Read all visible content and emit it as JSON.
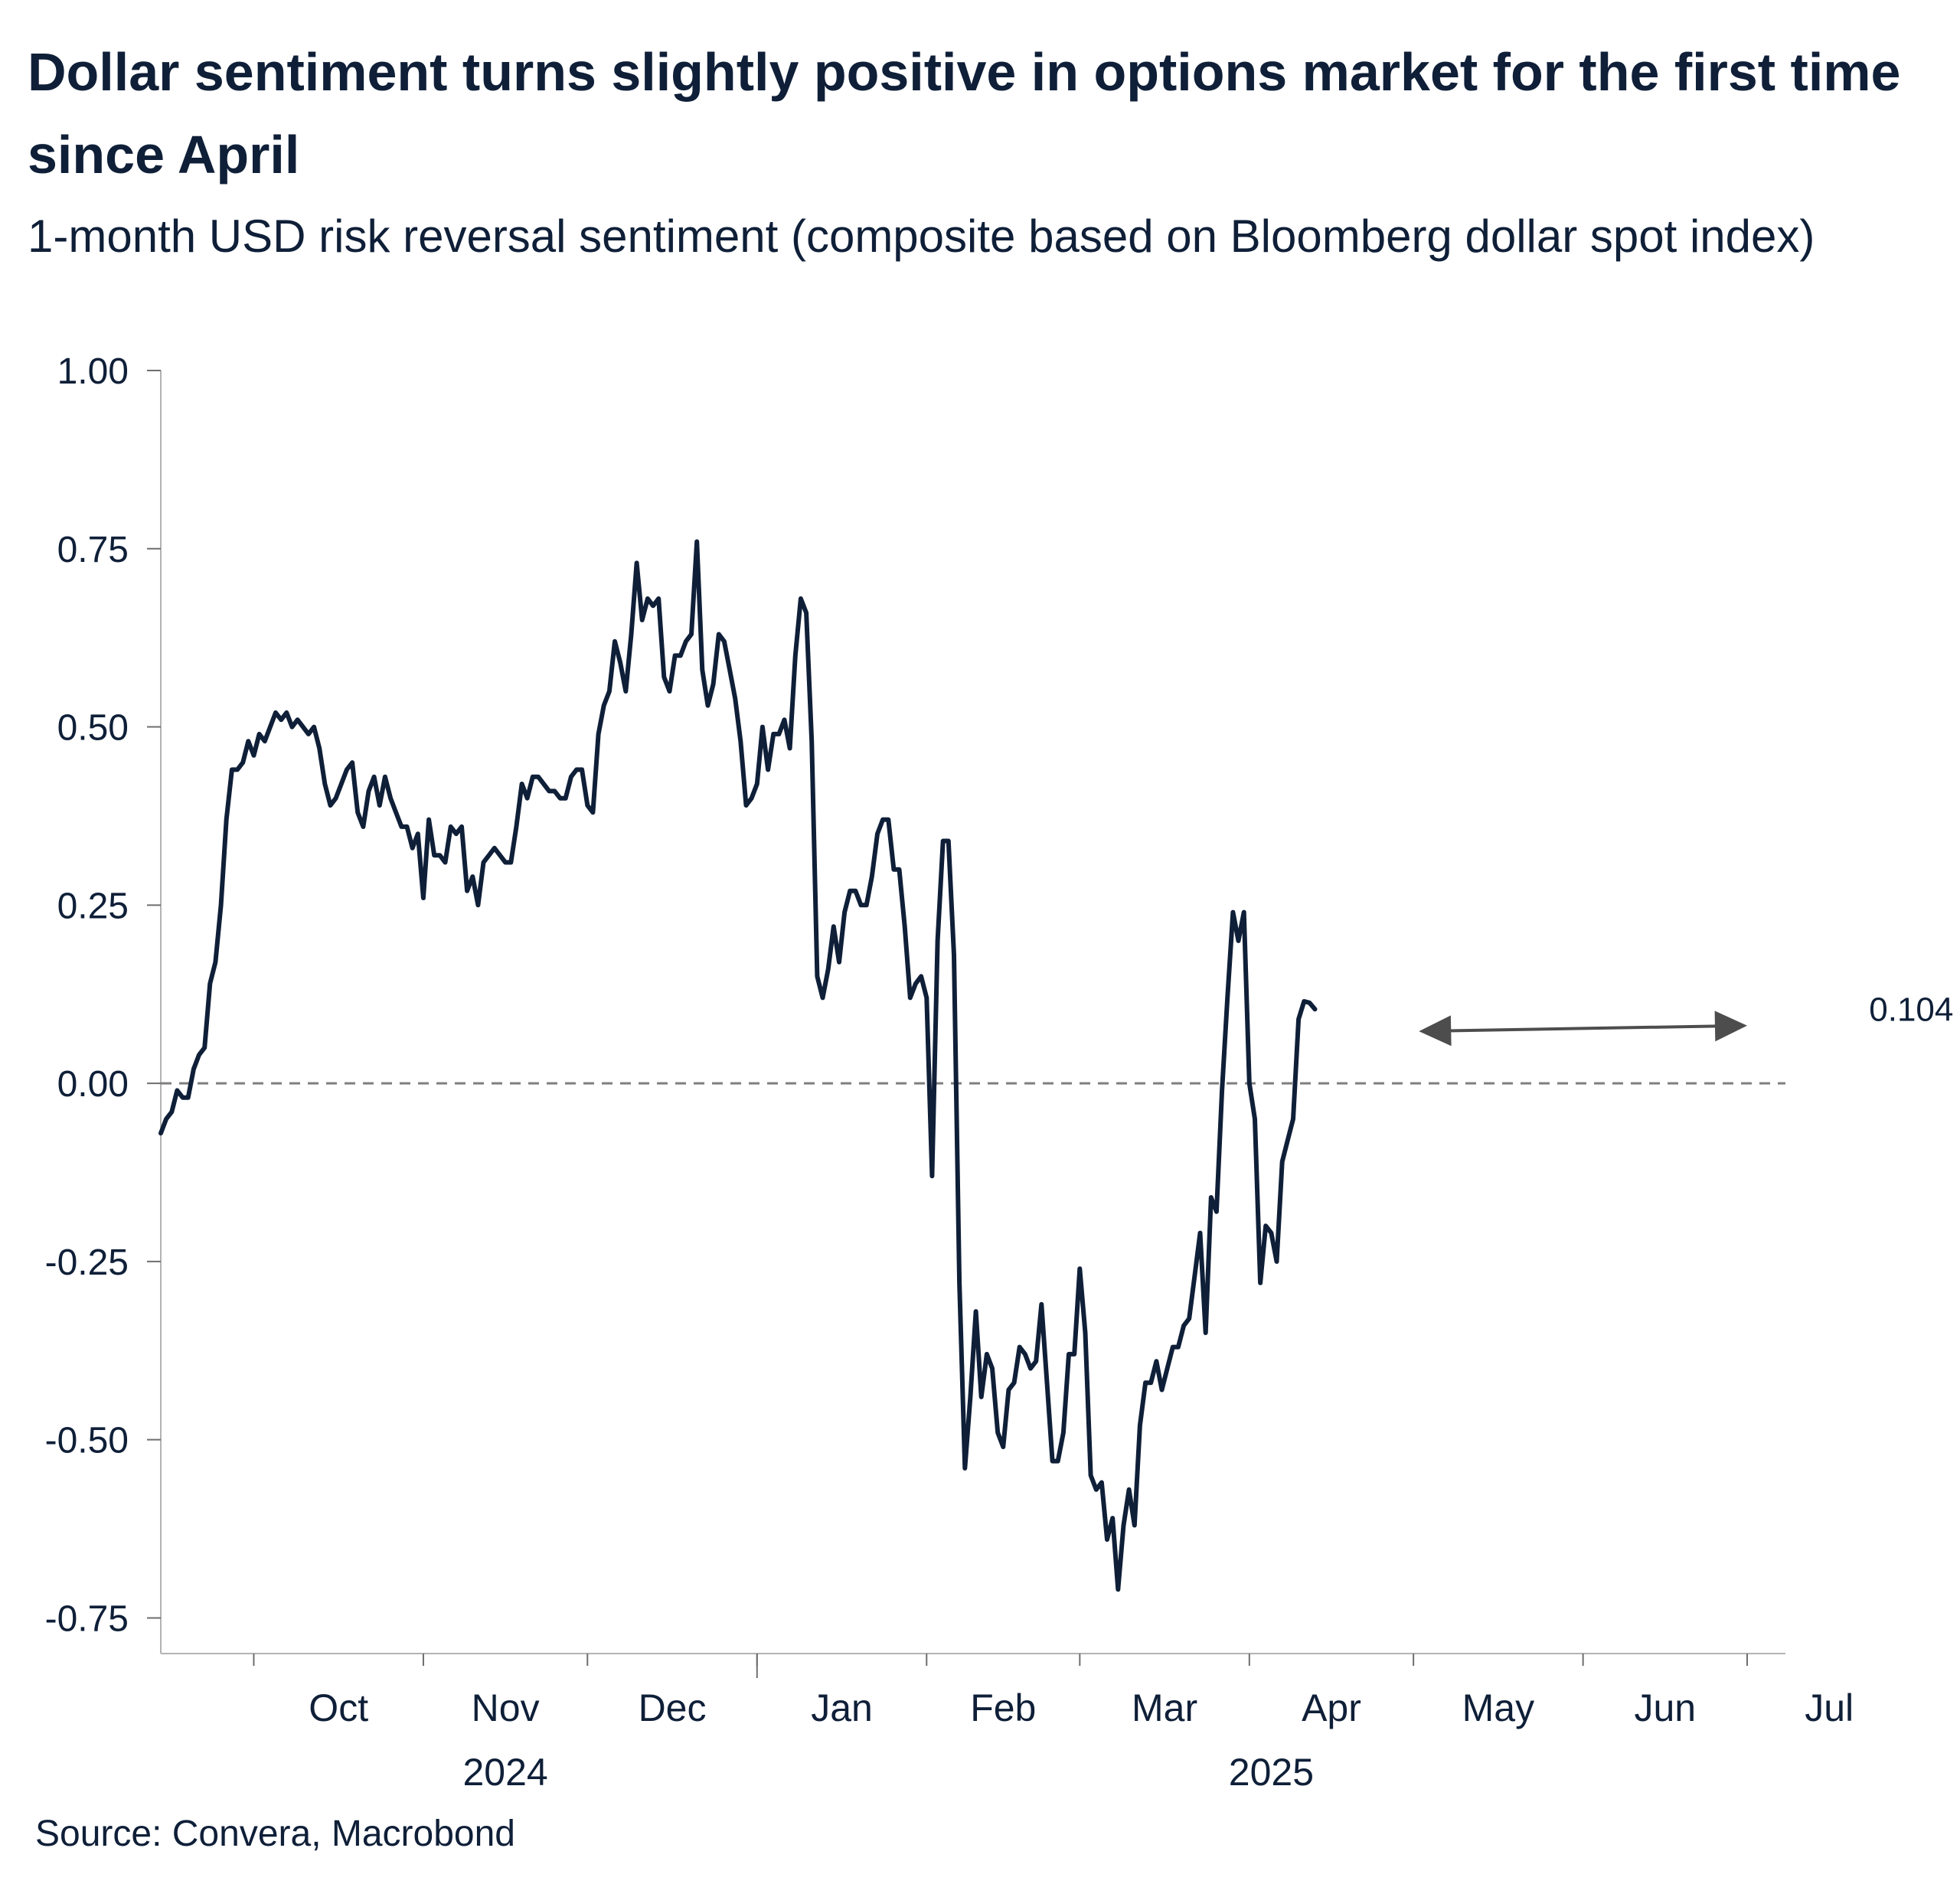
{
  "title": "Dollar sentiment turns slightly positive in options market for the first time since April",
  "subtitle": "1-month USD risk reversal sentiment (composite based on Bloomberg dollar spot index)",
  "source": "Source: Convera, Macrobond",
  "colors": {
    "line": "#0f1f38",
    "zero_line": "#7f7f7f",
    "axis": "#b3b3b3",
    "arrow": "#4d4d4d",
    "text": "#0f1f38"
  },
  "chart_data": {
    "type": "line",
    "title": "Dollar sentiment turns slightly positive in options market for the first time since April",
    "subtitle": "1-month USD risk reversal sentiment (composite based on Bloomberg dollar spot index)",
    "xlabel": "",
    "ylabel": "",
    "ylim": [
      -0.8,
      1.0
    ],
    "grid": false,
    "y_ticks": [
      1.0,
      0.75,
      0.5,
      0.25,
      0.0,
      -0.25,
      -0.5,
      -0.75
    ],
    "y_tick_labels": [
      "1.00",
      "0.75",
      "0.50",
      "0.25",
      "0.00",
      "-0.25",
      "-0.50",
      "-0.75"
    ],
    "x_unit": "days since 2024-09-01",
    "xlim": [
      13,
      310
    ],
    "x_month_ticks": [
      30,
      61,
      91,
      122,
      153,
      181,
      212,
      242,
      273,
      303
    ],
    "x_month_labels": [
      {
        "label": "Oct",
        "x": 45.5
      },
      {
        "label": "Nov",
        "x": 76
      },
      {
        "label": "Dec",
        "x": 106.5
      },
      {
        "label": "Jan",
        "x": 137.5
      },
      {
        "label": "Feb",
        "x": 167
      },
      {
        "label": "Mar",
        "x": 196.5
      },
      {
        "label": "Apr",
        "x": 227
      },
      {
        "label": "May",
        "x": 257.5
      },
      {
        "label": "Jun",
        "x": 288
      },
      {
        "label": "Jul",
        "x": 318
      }
    ],
    "year_separator_x": 122,
    "year_labels": [
      {
        "label": "2024",
        "x": 76
      },
      {
        "label": "2025",
        "x": 216
      }
    ],
    "reference_line": {
      "y": 0,
      "style": "dashed"
    },
    "annotation": {
      "label": "0.104",
      "value": 0.104,
      "arrow_from": {
        "x": 243,
        "y": 0.073
      },
      "arrow_to": {
        "x": 303,
        "y": 0.081
      },
      "label_anchor": {
        "x": 333,
        "y": 0.104
      }
    },
    "series": [
      {
        "name": "1-month USD risk reversal sentiment",
        "points": [
          [
            13,
            -0.07
          ],
          [
            14,
            -0.05
          ],
          [
            15,
            -0.04
          ],
          [
            16,
            -0.01
          ],
          [
            17,
            -0.02
          ],
          [
            18,
            -0.02
          ],
          [
            19,
            0.02
          ],
          [
            20,
            0.04
          ],
          [
            21,
            0.05
          ],
          [
            22,
            0.14
          ],
          [
            23,
            0.17
          ],
          [
            24,
            0.25
          ],
          [
            25,
            0.37
          ],
          [
            26,
            0.44
          ],
          [
            27,
            0.44
          ],
          [
            28,
            0.45
          ],
          [
            29,
            0.48
          ],
          [
            30,
            0.46
          ],
          [
            31,
            0.49
          ],
          [
            32,
            0.48
          ],
          [
            33,
            0.5
          ],
          [
            34,
            0.52
          ],
          [
            35,
            0.51
          ],
          [
            36,
            0.52
          ],
          [
            37,
            0.5
          ],
          [
            38,
            0.51
          ],
          [
            39,
            0.5
          ],
          [
            40,
            0.49
          ],
          [
            41,
            0.5
          ],
          [
            42,
            0.47
          ],
          [
            43,
            0.42
          ],
          [
            44,
            0.39
          ],
          [
            45,
            0.4
          ],
          [
            46,
            0.42
          ],
          [
            47,
            0.44
          ],
          [
            48,
            0.45
          ],
          [
            49,
            0.38
          ],
          [
            50,
            0.36
          ],
          [
            51,
            0.41
          ],
          [
            52,
            0.43
          ],
          [
            53,
            0.39
          ],
          [
            54,
            0.43
          ],
          [
            55,
            0.4
          ],
          [
            56,
            0.38
          ],
          [
            57,
            0.36
          ],
          [
            58,
            0.36
          ],
          [
            59,
            0.33
          ],
          [
            60,
            0.35
          ],
          [
            61,
            0.26
          ],
          [
            62,
            0.37
          ],
          [
            63,
            0.32
          ],
          [
            64,
            0.32
          ],
          [
            65,
            0.31
          ],
          [
            66,
            0.36
          ],
          [
            67,
            0.35
          ],
          [
            68,
            0.36
          ],
          [
            69,
            0.27
          ],
          [
            70,
            0.29
          ],
          [
            71,
            0.25
          ],
          [
            72,
            0.31
          ],
          [
            73,
            0.32
          ],
          [
            74,
            0.33
          ],
          [
            75,
            0.32
          ],
          [
            76,
            0.31
          ],
          [
            77,
            0.31
          ],
          [
            78,
            0.36
          ],
          [
            79,
            0.42
          ],
          [
            80,
            0.4
          ],
          [
            81,
            0.43
          ],
          [
            82,
            0.43
          ],
          [
            83,
            0.42
          ],
          [
            84,
            0.41
          ],
          [
            85,
            0.41
          ],
          [
            86,
            0.4
          ],
          [
            87,
            0.4
          ],
          [
            88,
            0.43
          ],
          [
            89,
            0.44
          ],
          [
            90,
            0.44
          ],
          [
            91,
            0.39
          ],
          [
            92,
            0.38
          ],
          [
            93,
            0.49
          ],
          [
            94,
            0.53
          ],
          [
            95,
            0.55
          ],
          [
            96,
            0.62
          ],
          [
            97,
            0.59
          ],
          [
            98,
            0.55
          ],
          [
            99,
            0.63
          ],
          [
            100,
            0.73
          ],
          [
            101,
            0.65
          ],
          [
            102,
            0.68
          ],
          [
            103,
            0.67
          ],
          [
            104,
            0.68
          ],
          [
            105,
            0.57
          ],
          [
            106,
            0.55
          ],
          [
            107,
            0.6
          ],
          [
            108,
            0.6
          ],
          [
            109,
            0.62
          ],
          [
            110,
            0.63
          ],
          [
            111,
            0.76
          ],
          [
            112,
            0.58
          ],
          [
            113,
            0.53
          ],
          [
            114,
            0.56
          ],
          [
            115,
            0.63
          ],
          [
            116,
            0.62
          ],
          [
            117,
            0.58
          ],
          [
            118,
            0.54
          ],
          [
            119,
            0.48
          ],
          [
            120,
            0.39
          ],
          [
            121,
            0.4
          ],
          [
            122,
            0.42
          ],
          [
            123,
            0.5
          ],
          [
            124,
            0.44
          ],
          [
            125,
            0.49
          ],
          [
            126,
            0.49
          ],
          [
            127,
            0.51
          ],
          [
            128,
            0.47
          ],
          [
            129,
            0.6
          ],
          [
            130,
            0.68
          ],
          [
            131,
            0.66
          ],
          [
            132,
            0.48
          ],
          [
            133,
            0.15
          ],
          [
            134,
            0.12
          ],
          [
            135,
            0.16
          ],
          [
            136,
            0.22
          ],
          [
            137,
            0.17
          ],
          [
            138,
            0.24
          ],
          [
            139,
            0.27
          ],
          [
            140,
            0.27
          ],
          [
            141,
            0.25
          ],
          [
            142,
            0.25
          ],
          [
            143,
            0.29
          ],
          [
            144,
            0.35
          ],
          [
            145,
            0.37
          ],
          [
            146,
            0.37
          ],
          [
            147,
            0.3
          ],
          [
            148,
            0.3
          ],
          [
            149,
            0.22
          ],
          [
            150,
            0.12
          ],
          [
            151,
            0.14
          ],
          [
            152,
            0.15
          ],
          [
            153,
            0.12
          ],
          [
            154,
            -0.13
          ],
          [
            155,
            0.2
          ],
          [
            156,
            0.34
          ],
          [
            157,
            0.34
          ],
          [
            158,
            0.18
          ],
          [
            159,
            -0.28
          ],
          [
            160,
            -0.54
          ],
          [
            161,
            -0.44
          ],
          [
            162,
            -0.32
          ],
          [
            163,
            -0.44
          ],
          [
            164,
            -0.38
          ],
          [
            165,
            -0.4
          ],
          [
            166,
            -0.49
          ],
          [
            167,
            -0.51
          ],
          [
            168,
            -0.43
          ],
          [
            169,
            -0.42
          ],
          [
            170,
            -0.37
          ],
          [
            171,
            -0.38
          ],
          [
            172,
            -0.4
          ],
          [
            173,
            -0.39
          ],
          [
            174,
            -0.31
          ],
          [
            175,
            -0.42
          ],
          [
            176,
            -0.53
          ],
          [
            177,
            -0.53
          ],
          [
            178,
            -0.49
          ],
          [
            179,
            -0.38
          ],
          [
            180,
            -0.38
          ],
          [
            181,
            -0.26
          ],
          [
            182,
            -0.35
          ],
          [
            183,
            -0.55
          ],
          [
            184,
            -0.57
          ],
          [
            185,
            -0.56
          ],
          [
            186,
            -0.64
          ],
          [
            187,
            -0.61
          ],
          [
            188,
            -0.71
          ],
          [
            189,
            -0.62
          ],
          [
            190,
            -0.57
          ],
          [
            191,
            -0.62
          ],
          [
            192,
            -0.48
          ],
          [
            193,
            -0.42
          ],
          [
            194,
            -0.42
          ],
          [
            195,
            -0.39
          ],
          [
            196,
            -0.43
          ],
          [
            197,
            -0.4
          ],
          [
            198,
            -0.37
          ],
          [
            199,
            -0.37
          ],
          [
            200,
            -0.34
          ],
          [
            201,
            -0.33
          ],
          [
            202,
            -0.27
          ],
          [
            203,
            -0.21
          ],
          [
            204,
            -0.35
          ],
          [
            205,
            -0.16
          ],
          [
            206,
            -0.18
          ],
          [
            207,
            -0.01
          ],
          [
            208,
            0.12
          ],
          [
            209,
            0.24
          ],
          [
            210,
            0.2
          ],
          [
            211,
            0.24
          ],
          [
            212,
            0.0
          ],
          [
            213,
            -0.05
          ],
          [
            214,
            -0.28
          ],
          [
            215,
            -0.2
          ],
          [
            216,
            -0.21
          ],
          [
            217,
            -0.25
          ],
          [
            218,
            -0.11
          ],
          [
            219,
            -0.08
          ],
          [
            220,
            -0.05
          ],
          [
            221,
            0.09
          ],
          [
            222,
            0.115
          ],
          [
            223,
            0.113
          ],
          [
            224,
            0.104
          ]
        ]
      }
    ]
  }
}
